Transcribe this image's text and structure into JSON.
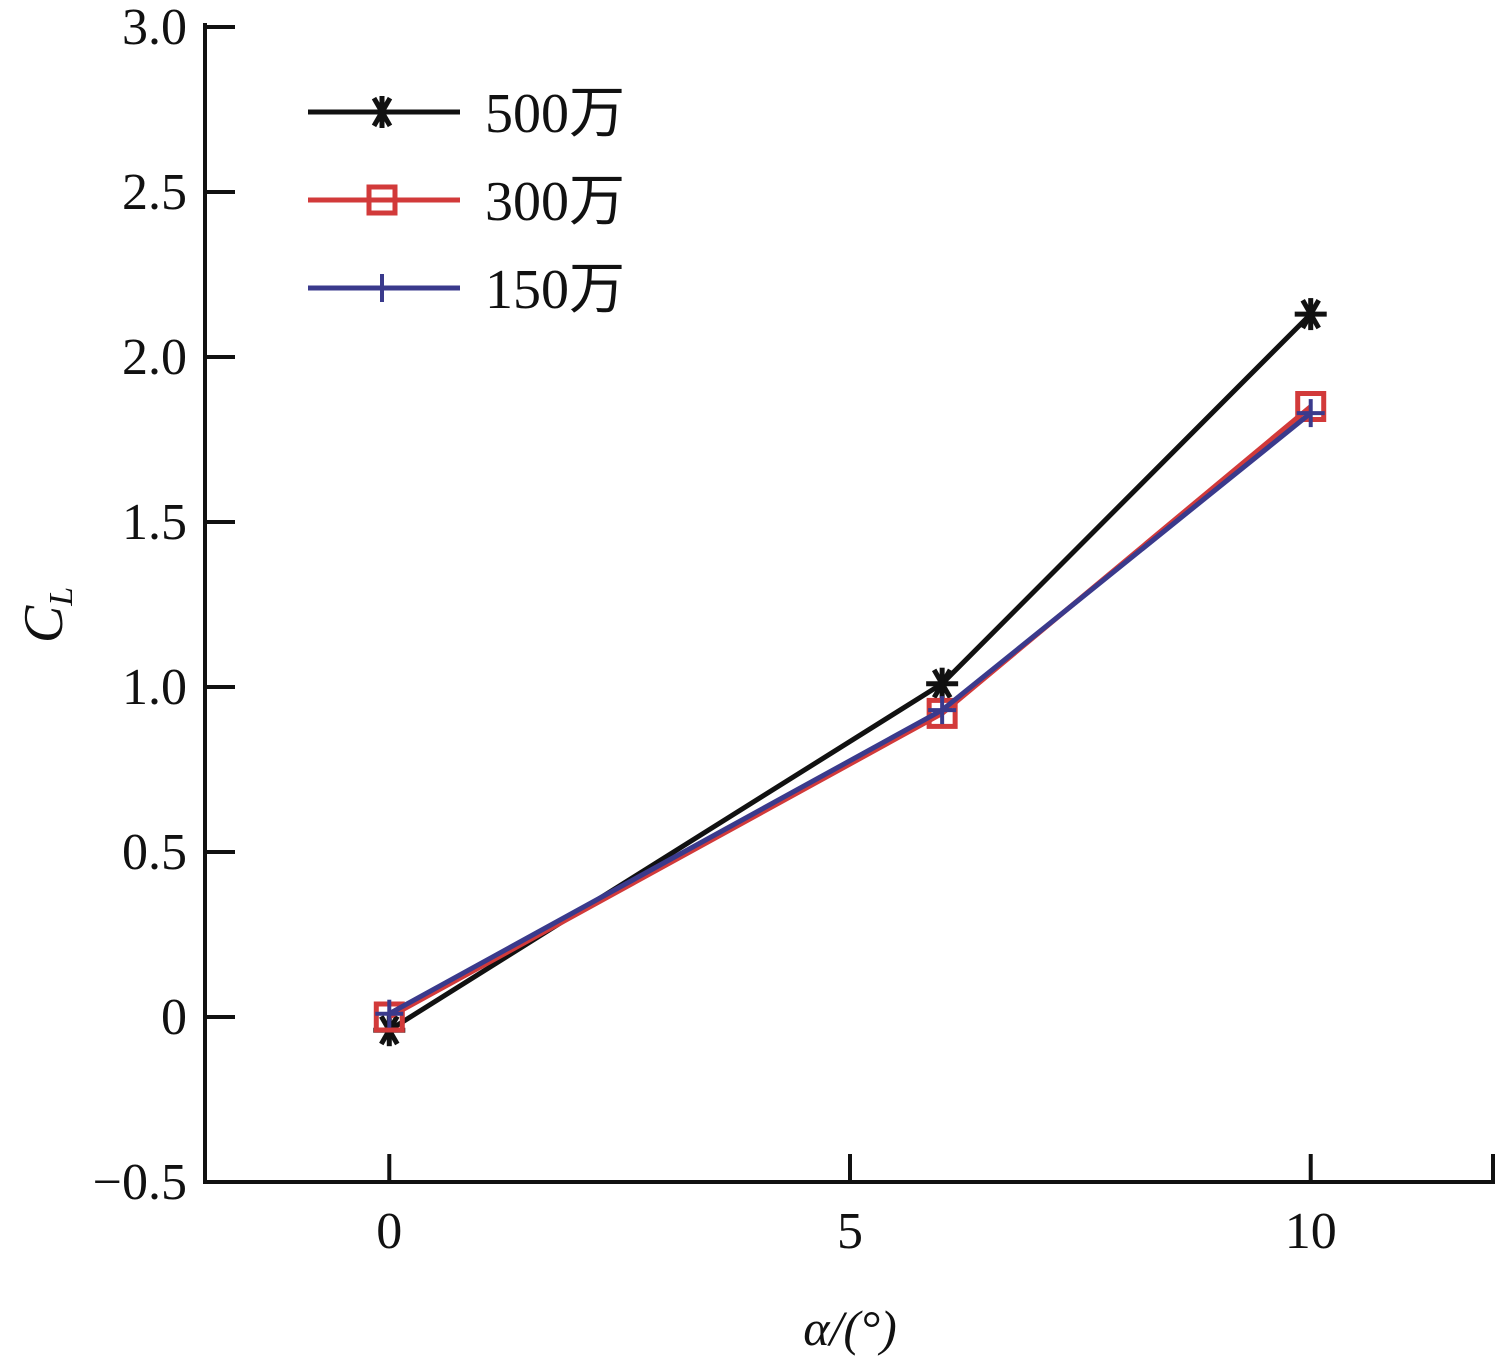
{
  "chart_data": {
    "type": "line",
    "title": "",
    "xlabel": "α/(°)",
    "ylabel": "C_L",
    "ylabel_main": "C",
    "ylabel_sub": "L",
    "xlim": [
      -2,
      12
    ],
    "ylim": [
      -0.5,
      3.0
    ],
    "xticks": [
      0,
      5,
      10
    ],
    "xtick_labels": [
      "0",
      "5",
      "10"
    ],
    "yticks": [
      -0.5,
      0,
      0.5,
      1.0,
      1.5,
      2.0,
      2.5,
      3.0
    ],
    "ytick_labels": [
      "−0.5",
      "0",
      "0.5",
      "1.0",
      "1.5",
      "2.0",
      "2.5",
      "3.0"
    ],
    "grid": false,
    "legend_position": "top-left",
    "x": [
      0,
      6,
      10
    ],
    "series": [
      {
        "name": "500万",
        "values": [
          -0.04,
          1.01,
          2.13
        ],
        "color": "#111111",
        "marker": "asterisk"
      },
      {
        "name": "300万",
        "values": [
          0.0,
          0.92,
          1.85
        ],
        "color": "#d23a3a",
        "marker": "square"
      },
      {
        "name": "150万",
        "values": [
          0.01,
          0.93,
          1.83
        ],
        "color": "#3a3a8c",
        "marker": "plus"
      }
    ]
  }
}
